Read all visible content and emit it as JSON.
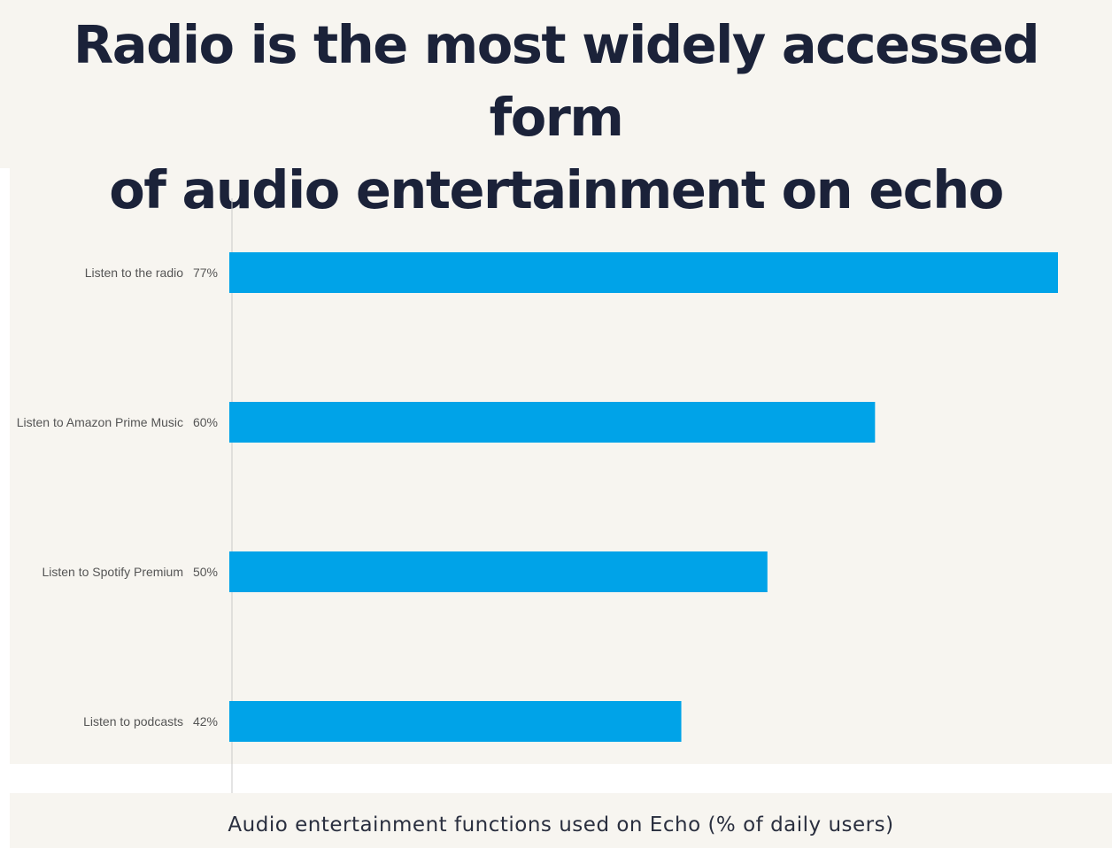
{
  "title": "Radio is the most widely accessed form of audio entertainment on echo",
  "caption": "Audio entertainment functions used on Echo (% of daily users)",
  "colors": {
    "bar": "#00a3e8",
    "title": "#1b2239",
    "panel": "#f7f5f0",
    "axis": "#c9c9c9"
  },
  "chart_data": {
    "type": "bar",
    "orientation": "horizontal",
    "categories": [
      "Listen to the radio",
      "Listen to Amazon Prime Music",
      "Listen to Spotify Premium",
      "Listen to podcasts"
    ],
    "values": [
      77,
      60,
      50,
      42
    ],
    "value_labels": [
      "77%",
      "60%",
      "50%",
      "42%"
    ],
    "title": "Radio is the most widely accessed form of audio entertainment on echo",
    "xlabel": "Audio entertainment functions used on Echo (% of daily users)",
    "ylabel": "",
    "grid": false,
    "legend": "none"
  }
}
